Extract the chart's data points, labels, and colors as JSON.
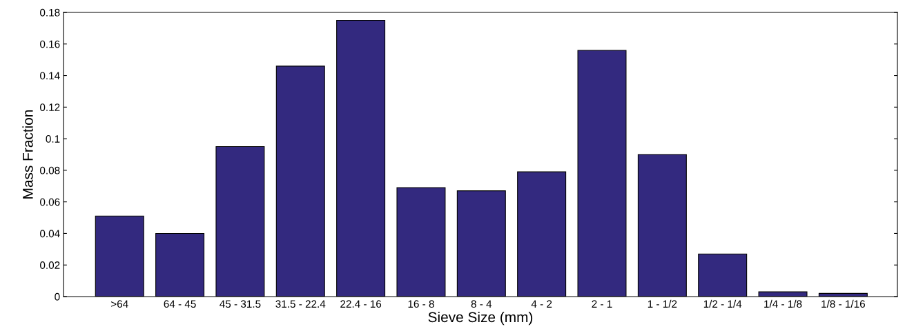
{
  "chart_data": {
    "type": "bar",
    "xlabel": "Sieve Size (mm)",
    "ylabel": "Mass Fraction",
    "categories": [
      ">64",
      "64 - 45",
      "45 - 31.5",
      "31.5 - 22.4",
      "22.4 - 16",
      "16 - 8",
      "8 - 4",
      "4 - 2",
      "2 - 1",
      "1 - 1/2",
      "1/2 - 1/4",
      "1/4 - 1/8",
      "1/8 - 1/16"
    ],
    "values": [
      0.051,
      0.04,
      0.095,
      0.146,
      0.175,
      0.069,
      0.067,
      0.079,
      0.156,
      0.09,
      0.027,
      0.003,
      0.002
    ],
    "color": "#33297f",
    "ylim": [
      0,
      0.18
    ],
    "yticks": [
      {
        "value": 0,
        "label": "0"
      },
      0.02,
      0.04,
      0.06,
      0.08,
      0.1,
      0.12,
      0.14,
      0.16,
      0.18
    ],
    "grid": false
  }
}
